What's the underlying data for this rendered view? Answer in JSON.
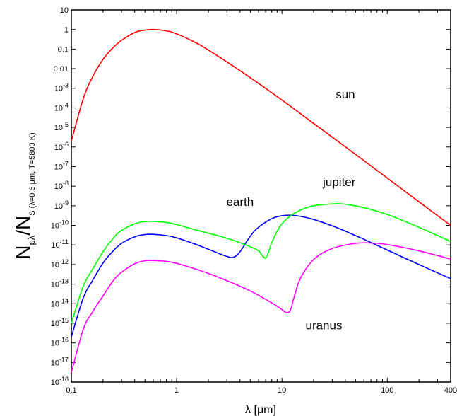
{
  "chart_data": {
    "type": "line",
    "title": "",
    "xlabel": "λ [μm]",
    "ylabel": {
      "main": "N",
      "sub1": "pλ",
      "mid": "/N",
      "sub2": "S (λ=0.6 μm, T=5800 K)"
    },
    "x_scale": "log",
    "y_scale": "log",
    "xlim": [
      0.1,
      400
    ],
    "ylim": [
      1e-18,
      10
    ],
    "x_ticks": [
      {
        "value": 0.1,
        "label": "0.1"
      },
      {
        "value": 1,
        "label": "1"
      },
      {
        "value": 10,
        "label": "10"
      },
      {
        "value": 100,
        "label": "100"
      },
      {
        "value": 400,
        "label": "400"
      }
    ],
    "y_ticks": [
      {
        "value": 10,
        "label": "10"
      },
      {
        "value": 1,
        "label": "1"
      },
      {
        "value": 0.1,
        "label": "0.1"
      },
      {
        "value": 0.01,
        "label": "0.01"
      },
      {
        "value": 0.001,
        "base": "10",
        "exp": "-3"
      },
      {
        "value": 0.0001,
        "base": "10",
        "exp": "-4"
      },
      {
        "value": 1e-05,
        "base": "10",
        "exp": "-5"
      },
      {
        "value": 1e-06,
        "base": "10",
        "exp": "-6"
      },
      {
        "value": 1e-07,
        "base": "10",
        "exp": "-7"
      },
      {
        "value": 1e-08,
        "base": "10",
        "exp": "-8"
      },
      {
        "value": 1e-09,
        "base": "10",
        "exp": "-9"
      },
      {
        "value": 1e-10,
        "base": "10",
        "exp": "-10"
      },
      {
        "value": 1e-11,
        "base": "10",
        "exp": "-11"
      },
      {
        "value": 1e-12,
        "base": "10",
        "exp": "-12"
      },
      {
        "value": 1e-13,
        "base": "10",
        "exp": "-13"
      },
      {
        "value": 1e-14,
        "base": "10",
        "exp": "-14"
      },
      {
        "value": 1e-15,
        "base": "10",
        "exp": "-15"
      },
      {
        "value": 1e-16,
        "base": "10",
        "exp": "-16"
      },
      {
        "value": 1e-17,
        "base": "10",
        "exp": "-17"
      },
      {
        "value": 1e-18,
        "base": "10",
        "exp": "-18"
      }
    ],
    "grid": false,
    "legend": "none",
    "series": [
      {
        "name": "sun",
        "color": "#ff0000",
        "x": [
          0.1,
          0.13,
          0.16,
          0.2,
          0.25,
          0.3,
          0.4,
          0.5,
          0.6,
          0.8,
          1,
          1.5,
          2,
          3,
          5,
          10,
          20,
          50,
          100,
          200,
          400
        ],
        "y": [
          2e-06,
          0.0003,
          0.004,
          0.03,
          0.12,
          0.28,
          0.7,
          0.93,
          1.0,
          0.85,
          0.6,
          0.22,
          0.09,
          0.022,
          0.0035,
          0.00025,
          1.6e-05,
          4.2e-07,
          2.6e-08,
          1.6e-09,
          1e-10
        ]
      },
      {
        "name": "earth",
        "color": "#0000ff",
        "x": [
          0.1,
          0.13,
          0.16,
          0.2,
          0.25,
          0.3,
          0.4,
          0.5,
          0.6,
          0.8,
          1,
          1.5,
          2,
          3,
          3.5,
          4,
          5,
          6,
          8,
          10,
          12,
          15,
          20,
          30,
          50,
          100,
          200,
          400
        ],
        "y": [
          2e-16,
          2e-14,
          1.6e-13,
          1.2e-12,
          5e-12,
          1.2e-11,
          2.6e-11,
          3.4e-11,
          3.5e-11,
          3e-11,
          2.3e-11,
          1.1e-11,
          6e-12,
          2.6e-12,
          2.4e-12,
          4.5e-12,
          2.8e-11,
          8e-11,
          2.2e-10,
          3.1e-10,
          3.3e-10,
          2.9e-10,
          2e-10,
          9.5e-11,
          3e-11,
          5.5e-12,
          1e-12,
          1.9e-13
        ]
      },
      {
        "name": "jupiter",
        "color": "#00ff00",
        "x": [
          0.1,
          0.13,
          0.16,
          0.2,
          0.25,
          0.3,
          0.4,
          0.5,
          0.6,
          0.8,
          1,
          1.5,
          2,
          3,
          4,
          5,
          6,
          7,
          8,
          9,
          10,
          12,
          15,
          20,
          30,
          40,
          60,
          100,
          200,
          400
        ],
        "y": [
          1e-15,
          8e-14,
          6e-13,
          4.5e-12,
          2.2e-11,
          5.5e-11,
          1.2e-10,
          1.55e-10,
          1.6e-10,
          1.4e-10,
          1.1e-10,
          6e-11,
          4e-11,
          2.2e-11,
          1.3e-11,
          8e-12,
          5e-12,
          2.2e-12,
          1.3e-11,
          5e-11,
          1.2e-10,
          3e-10,
          6e-10,
          1e-09,
          1.25e-09,
          1.2e-09,
          8e-10,
          3.6e-10,
          8e-11,
          1.5e-11
        ]
      },
      {
        "name": "uranus",
        "color": "#ff00ff",
        "x": [
          0.1,
          0.13,
          0.16,
          0.2,
          0.25,
          0.3,
          0.4,
          0.5,
          0.6,
          0.8,
          1,
          1.5,
          2,
          3,
          5,
          8,
          10,
          11,
          12,
          13,
          15,
          20,
          30,
          50,
          70,
          100,
          200,
          400
        ],
        "y": [
          3e-18,
          5e-16,
          4e-15,
          2.5e-14,
          1.5e-13,
          4e-13,
          1.1e-12,
          1.55e-12,
          1.6e-12,
          1.45e-12,
          1.15e-12,
          6e-13,
          3.5e-13,
          1.5e-13,
          4.5e-14,
          1.1e-14,
          5e-15,
          3.5e-15,
          4.5e-15,
          2e-14,
          2e-13,
          1.8e-12,
          6.5e-12,
          1.2e-11,
          1.25e-11,
          1.05e-11,
          5e-12,
          1.9e-12
        ]
      }
    ],
    "annotations": [
      {
        "text": "sun",
        "series": "sun"
      },
      {
        "text": "earth",
        "series": "earth"
      },
      {
        "text": "jupiter",
        "series": "jupiter"
      },
      {
        "text": "uranus",
        "series": "uranus"
      }
    ]
  }
}
